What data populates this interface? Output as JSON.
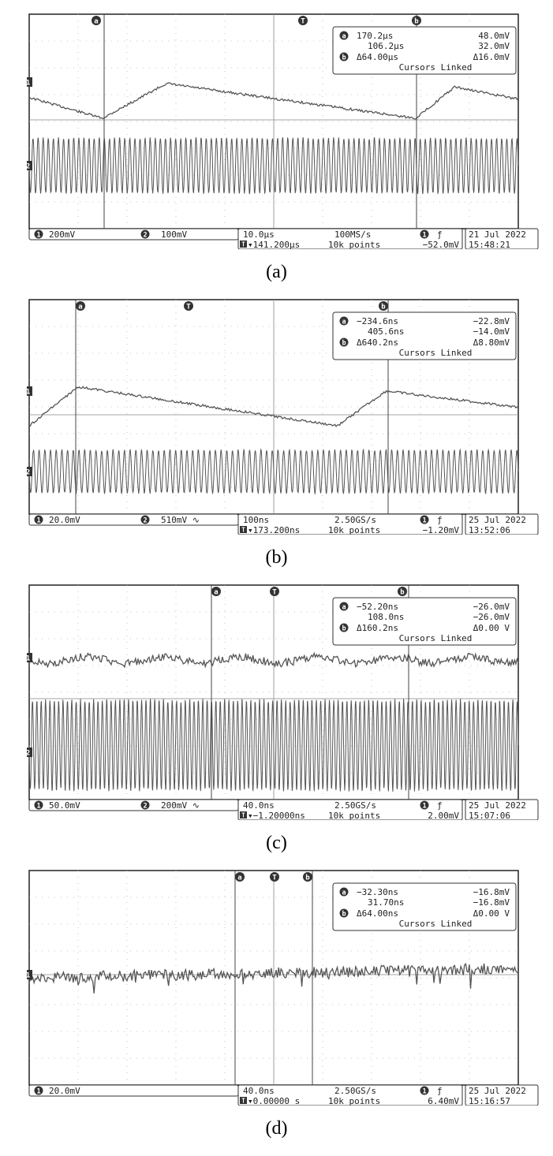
{
  "panels": [
    {
      "caption": "(a)",
      "marker_a": "a",
      "marker_b": "b",
      "trigger_marker": "T",
      "readout": {
        "a_time": "170.2µs",
        "a_volt": "48.0mV",
        "b_time": "106.2µs",
        "b_volt": "32.0mV",
        "delta_time": "Δ64.00µs",
        "delta_volt": "Δ16.0mV",
        "linked": "Cursors Linked"
      },
      "ch1_scale": "200mV",
      "ch2_scale": "100mV",
      "timebase": "10.0µs",
      "sample_rate": "100MS/s",
      "trigger_position": "▾141.200µs",
      "record_length": "10k points",
      "trigger_level": "−52.0mV",
      "date": "21 Jul  2022",
      "time": "15:48:21",
      "ch1_mode": "ramp",
      "has_ch2": true
    },
    {
      "caption": "(b)",
      "marker_a": "a",
      "marker_b": "b",
      "trigger_marker": "T",
      "readout": {
        "a_time": "−234.6ns",
        "a_volt": "−22.8mV",
        "b_time": "405.6ns",
        "b_volt": "−14.0mV",
        "delta_time": "Δ640.2ns",
        "delta_volt": "Δ8.80mV",
        "linked": "Cursors Linked"
      },
      "ch1_scale": "20.0mV",
      "ch2_scale": "510mV ∿",
      "timebase": "100ns",
      "sample_rate": "2.50GS/s",
      "trigger_position": "▾173.200ns",
      "record_length": "10k points",
      "trigger_level": "−1.20mV",
      "date": "25 Jul  2022",
      "time": "13:52:06",
      "ch1_mode": "ramp2",
      "has_ch2": true
    },
    {
      "caption": "(c)",
      "marker_a": "a",
      "marker_b": "b",
      "trigger_marker": "T",
      "readout": {
        "a_time": "−52.20ns",
        "a_volt": "−26.0mV",
        "b_time": "108.0ns",
        "b_volt": "−26.0mV",
        "delta_time": "Δ160.2ns",
        "delta_volt": "Δ0.00 V",
        "linked": "Cursors Linked"
      },
      "ch1_scale": "50.0mV",
      "ch2_scale": "200mV ∿",
      "timebase": "40.0ns",
      "sample_rate": "2.50GS/s",
      "trigger_position": "▾−1.20000ns",
      "record_length": "10k points",
      "trigger_level": "2.00mV",
      "date": "25 Jul  2022",
      "time": "15:07:06",
      "ch1_mode": "noise",
      "has_ch2": true
    },
    {
      "caption": "(d)",
      "marker_a": "a",
      "marker_b": "b",
      "trigger_marker": "T",
      "readout": {
        "a_time": "−32.30ns",
        "a_volt": "−16.8mV",
        "b_time": "31.70ns",
        "b_volt": "−16.8mV",
        "delta_time": "Δ64.00ns",
        "delta_volt": "Δ0.00 V",
        "linked": "Cursors Linked"
      },
      "ch1_scale": "20.0mV",
      "ch2_scale": "",
      "timebase": "40.0ns",
      "sample_rate": "2.50GS/s",
      "trigger_position": "▾0.00000 s",
      "record_length": "10k points",
      "trigger_level": "6.40mV",
      "date": "25 Jul  2022",
      "time": "15:16:57",
      "ch1_mode": "noisy",
      "has_ch2": false
    }
  ],
  "channel_labels": {
    "ch1": "1",
    "ch2": "2"
  },
  "trigger_symbol": "T",
  "slope_symbol": "ƒ",
  "colors": {
    "trace": "#555555",
    "grid": "#9a9a9a",
    "frame": "#222222",
    "background": "#ffffff"
  }
}
